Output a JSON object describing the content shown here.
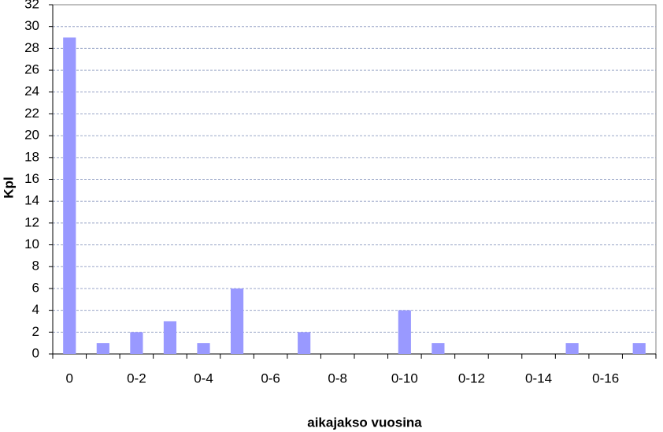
{
  "chart_data": {
    "type": "bar",
    "x_label": "aikajakso vuosina",
    "y_label": "Kpl",
    "categories": [
      "0",
      null,
      "0-2",
      null,
      "0-4",
      null,
      "0-6",
      null,
      "0-8",
      null,
      "0-10",
      null,
      "0-12",
      null,
      "0-14",
      null,
      "0-16",
      null
    ],
    "values": [
      29,
      1,
      2,
      3,
      1,
      6,
      0,
      2,
      0,
      0,
      4,
      1,
      0,
      0,
      0,
      1,
      0,
      1
    ],
    "color": "#9999ff",
    "ylim": [
      0,
      32
    ],
    "yticks": [
      0,
      2,
      4,
      6,
      8,
      10,
      12,
      14,
      16,
      18,
      20,
      22,
      24,
      26,
      28,
      30,
      32
    ],
    "grid": true
  }
}
